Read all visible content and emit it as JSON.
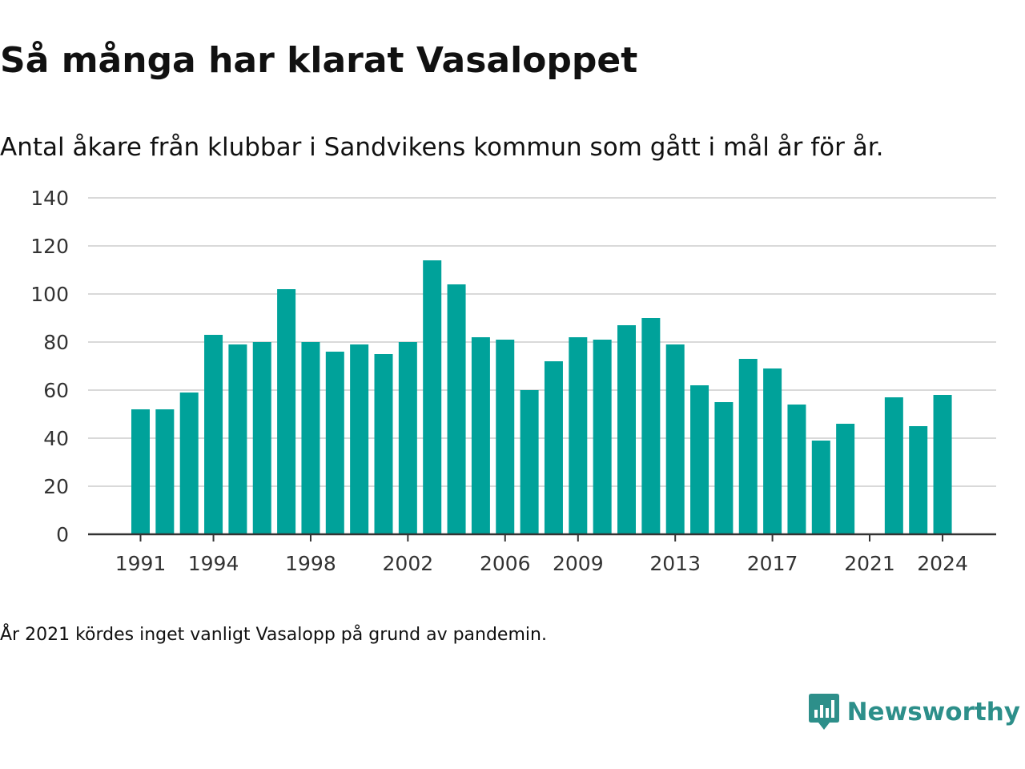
{
  "page": {
    "title": "Så många har klarat Vasaloppet",
    "subtitle": "Antal åkare från klubbar i Sandvikens kommun som gått i mål år för år.",
    "footnote": "År 2021 kördes inget vanligt Vasalopp på grund av pandemin.",
    "brand": {
      "name": "Newsworthy",
      "icon": "newsworthy-logo-icon",
      "color": "#2d8f8a"
    }
  },
  "chart_data": {
    "type": "bar",
    "categories": [
      1991,
      1992,
      1993,
      1994,
      1995,
      1996,
      1997,
      1998,
      1999,
      2000,
      2001,
      2002,
      2003,
      2004,
      2005,
      2006,
      2007,
      2008,
      2009,
      2010,
      2011,
      2012,
      2013,
      2014,
      2015,
      2016,
      2017,
      2018,
      2019,
      2020,
      2021,
      2022,
      2023,
      2024
    ],
    "values": [
      52,
      52,
      59,
      83,
      79,
      80,
      102,
      80,
      76,
      79,
      75,
      80,
      114,
      104,
      82,
      81,
      60,
      72,
      82,
      81,
      87,
      90,
      79,
      62,
      55,
      73,
      69,
      54,
      39,
      46,
      null,
      57,
      45,
      58
    ],
    "x_tick_labels": [
      "1991",
      "1994",
      "1998",
      "2002",
      "2006",
      "2009",
      "2013",
      "2017",
      "2021",
      "2024"
    ],
    "y_ticks": [
      0,
      20,
      40,
      60,
      80,
      100,
      120,
      140
    ],
    "ylim": [
      0,
      140
    ],
    "bar_color": "#00a29a",
    "grid": true,
    "title": "Så många har klarat Vasaloppet",
    "subtitle": "Antal åkare från klubbar i Sandvikens kommun som gått i mål år för år."
  }
}
